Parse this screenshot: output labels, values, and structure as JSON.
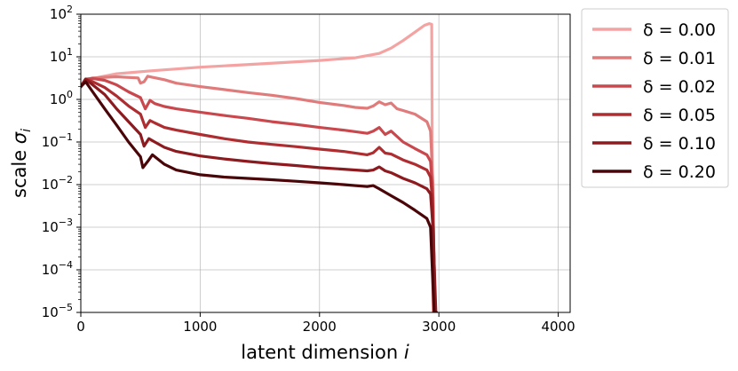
{
  "chart_data": {
    "type": "line",
    "xlabel_text": "latent dimension ",
    "xlabel_var": "i",
    "ylabel_text": "scale ",
    "ylabel_var": "σ",
    "ylabel_sub": "i",
    "xlim": [
      0,
      4100
    ],
    "ylim": [
      1e-05,
      100
    ],
    "yscale": "log",
    "grid": true,
    "legend_position": "outside-right",
    "xticks": [
      0,
      1000,
      2000,
      3000,
      4000
    ],
    "xtick_labels": [
      "0",
      "1000",
      "2000",
      "3000",
      "4000"
    ],
    "yticks": [
      {
        "value": 100,
        "base": "10",
        "exp": "2"
      },
      {
        "value": 10,
        "base": "10",
        "exp": "1"
      },
      {
        "value": 1,
        "base": "10",
        "exp": "0"
      },
      {
        "value": 0.1,
        "base": "10",
        "exp": "−1"
      },
      {
        "value": 0.01,
        "base": "10",
        "exp": "−2"
      },
      {
        "value": 0.001,
        "base": "10",
        "exp": "−3"
      },
      {
        "value": 0.0001,
        "base": "10",
        "exp": "−4"
      },
      {
        "value": 1e-05,
        "base": "10",
        "exp": "−5"
      }
    ],
    "series": [
      {
        "name": "δ = 0.00",
        "color": "#f4a3a3",
        "x": [
          0,
          50,
          150,
          300,
          600,
          1000,
          1500,
          2000,
          2300,
          2500,
          2600,
          2700,
          2800,
          2880,
          2920,
          2940,
          2950,
          2960
        ],
        "y": [
          2.0,
          2.8,
          3.3,
          4.0,
          4.7,
          5.7,
          6.8,
          8.2,
          9.5,
          12,
          16,
          24,
          38,
          55,
          60,
          58,
          1e-05,
          1e-05
        ]
      },
      {
        "name": "δ = 0.01",
        "color": "#e07b7b",
        "x": [
          0,
          40,
          100,
          200,
          300,
          480,
          500,
          530,
          560,
          600,
          700,
          800,
          1000,
          1200,
          1400,
          1600,
          1800,
          2000,
          2200,
          2300,
          2400,
          2450,
          2500,
          2550,
          2600,
          2650,
          2700,
          2800,
          2900,
          2930,
          2950,
          2960
        ],
        "y": [
          2.0,
          2.9,
          3.2,
          3.3,
          3.4,
          3.2,
          2.4,
          2.6,
          3.5,
          3.3,
          2.9,
          2.4,
          2.0,
          1.7,
          1.45,
          1.25,
          1.05,
          0.85,
          0.72,
          0.65,
          0.62,
          0.7,
          0.88,
          0.75,
          0.82,
          0.6,
          0.55,
          0.45,
          0.3,
          0.18,
          0.01,
          1e-05
        ]
      },
      {
        "name": "δ = 0.02",
        "color": "#c9484d",
        "x": [
          0,
          40,
          100,
          200,
          300,
          400,
          500,
          540,
          580,
          620,
          700,
          800,
          1000,
          1200,
          1400,
          1600,
          1800,
          2000,
          2200,
          2400,
          2450,
          2500,
          2550,
          2600,
          2700,
          2800,
          2900,
          2930,
          2950,
          2965
        ],
        "y": [
          2.0,
          3.0,
          3.1,
          2.8,
          2.2,
          1.5,
          1.1,
          0.6,
          0.95,
          0.8,
          0.68,
          0.6,
          0.5,
          0.42,
          0.36,
          0.3,
          0.26,
          0.22,
          0.19,
          0.16,
          0.18,
          0.22,
          0.15,
          0.18,
          0.1,
          0.07,
          0.05,
          0.035,
          0.005,
          1e-05
        ]
      },
      {
        "name": "δ = 0.05",
        "color": "#ad2d31",
        "x": [
          0,
          40,
          100,
          200,
          300,
          400,
          500,
          540,
          580,
          620,
          700,
          800,
          1000,
          1200,
          1400,
          1600,
          1800,
          2000,
          2200,
          2400,
          2450,
          2500,
          2550,
          2600,
          2700,
          2800,
          2900,
          2930,
          2950,
          2970
        ],
        "y": [
          2.0,
          3.0,
          2.6,
          1.9,
          1.2,
          0.7,
          0.45,
          0.22,
          0.32,
          0.28,
          0.22,
          0.19,
          0.15,
          0.12,
          0.1,
          0.088,
          0.078,
          0.068,
          0.06,
          0.05,
          0.056,
          0.075,
          0.055,
          0.052,
          0.038,
          0.03,
          0.022,
          0.015,
          0.003,
          1e-05
        ]
      },
      {
        "name": "δ = 0.10",
        "color": "#8c1a1f",
        "x": [
          0,
          40,
          100,
          200,
          300,
          400,
          500,
          530,
          570,
          620,
          700,
          800,
          1000,
          1200,
          1400,
          1600,
          1800,
          2000,
          2200,
          2400,
          2450,
          2500,
          2550,
          2600,
          2700,
          2800,
          2900,
          2930,
          2950,
          2975
        ],
        "y": [
          2.0,
          3.0,
          2.2,
          1.3,
          0.6,
          0.3,
          0.15,
          0.08,
          0.12,
          0.1,
          0.075,
          0.06,
          0.047,
          0.04,
          0.035,
          0.031,
          0.028,
          0.025,
          0.023,
          0.021,
          0.022,
          0.026,
          0.021,
          0.019,
          0.014,
          0.011,
          0.008,
          0.006,
          0.001,
          1e-05
        ]
      },
      {
        "name": "δ = 0.20",
        "color": "#4a0508",
        "x": [
          0,
          40,
          100,
          200,
          300,
          400,
          500,
          520,
          560,
          600,
          700,
          800,
          1000,
          1200,
          1400,
          1600,
          1800,
          2000,
          2200,
          2400,
          2450,
          2500,
          2600,
          2700,
          2800,
          2900,
          2930,
          2960,
          2980
        ],
        "y": [
          2.0,
          2.6,
          1.5,
          0.6,
          0.25,
          0.1,
          0.045,
          0.025,
          0.035,
          0.05,
          0.03,
          0.022,
          0.017,
          0.015,
          0.014,
          0.013,
          0.012,
          0.011,
          0.01,
          0.009,
          0.0095,
          0.008,
          0.0055,
          0.0038,
          0.0025,
          0.0016,
          0.001,
          1e-05,
          1e-05
        ]
      }
    ]
  }
}
